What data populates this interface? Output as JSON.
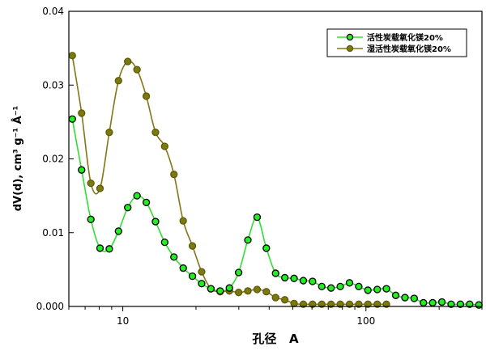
{
  "chart_data": {
    "type": "line",
    "title": "",
    "xlabel": "孔径   A",
    "ylabel": "dV(d), cm³ g⁻¹ Å⁻¹",
    "xscale": "log",
    "xlim": [
      6,
      300
    ],
    "ylim": [
      0,
      0.04
    ],
    "xticks": [
      10,
      100
    ],
    "xtick_labels": [
      "10",
      "100"
    ],
    "yticks": [
      0,
      0.01,
      0.02,
      0.03,
      0.04
    ],
    "ytick_labels": [
      "0.000",
      "0.01",
      "0.02",
      "0.03",
      "0.04"
    ],
    "grid": false,
    "legend_position": "top-right",
    "series": [
      {
        "name": "活性炭载氧化镁20%",
        "line_color": "#33dd33",
        "marker_color": "#22ee22",
        "x": [
          6.2,
          6.77,
          7.39,
          8.06,
          8.8,
          9.6,
          10.48,
          11.44,
          12.49,
          13.63,
          14.87,
          16.23,
          17.72,
          19.34,
          21.1,
          23.03,
          25.14,
          27.44,
          29.95,
          32.69,
          35.68,
          38.94,
          42.5,
          46.39,
          50.63,
          55.26,
          60.31,
          65.83,
          71.85,
          78.42,
          85.59,
          93.42,
          101.9,
          111.3,
          121.4,
          132.6,
          144.7,
          157.9,
          172.4,
          188.1,
          205.3,
          224.1,
          244.6,
          267.0,
          291.4
        ],
        "y": [
          0.0254,
          0.0185,
          0.0118,
          0.0079,
          0.0078,
          0.0102,
          0.0134,
          0.015,
          0.0141,
          0.0115,
          0.0087,
          0.0067,
          0.0052,
          0.0041,
          0.0031,
          0.0024,
          0.0021,
          0.0025,
          0.0046,
          0.009,
          0.0121,
          0.0079,
          0.0045,
          0.0039,
          0.0038,
          0.0035,
          0.0034,
          0.0027,
          0.0025,
          0.0027,
          0.0032,
          0.0027,
          0.0022,
          0.0023,
          0.0024,
          0.0015,
          0.0012,
          0.0011,
          0.0005,
          0.0005,
          0.0006,
          0.0003,
          0.0003,
          0.0003,
          0.0002
        ]
      },
      {
        "name": "湿活性炭载氧化镁20%",
        "line_color": "#857514",
        "marker_color": "#7a7a10",
        "x": [
          6.2,
          6.77,
          7.39,
          8.06,
          8.8,
          9.6,
          10.48,
          11.44,
          12.49,
          13.63,
          14.87,
          16.23,
          17.72,
          19.34,
          21.1,
          23.03,
          25.14,
          27.44,
          29.95,
          32.69,
          35.68,
          38.94,
          42.5,
          46.39,
          50.63,
          55.26,
          60.31,
          65.83,
          71.85,
          78.42,
          85.59,
          93.42,
          101.9,
          111.3,
          121.4
        ],
        "y": [
          0.034,
          0.0262,
          0.0167,
          0.016,
          0.0236,
          0.0306,
          0.0332,
          0.0321,
          0.0285,
          0.0236,
          0.0217,
          0.0179,
          0.0116,
          0.0082,
          0.0047,
          0.0024,
          0.002,
          0.0021,
          0.0019,
          0.0021,
          0.0023,
          0.002,
          0.0012,
          0.0009,
          0.0004,
          0.0003,
          0.0003,
          0.0003,
          0.0003,
          0.0003,
          0.0003,
          0.0003,
          0.0003,
          0.0003,
          0.0003
        ]
      }
    ]
  }
}
